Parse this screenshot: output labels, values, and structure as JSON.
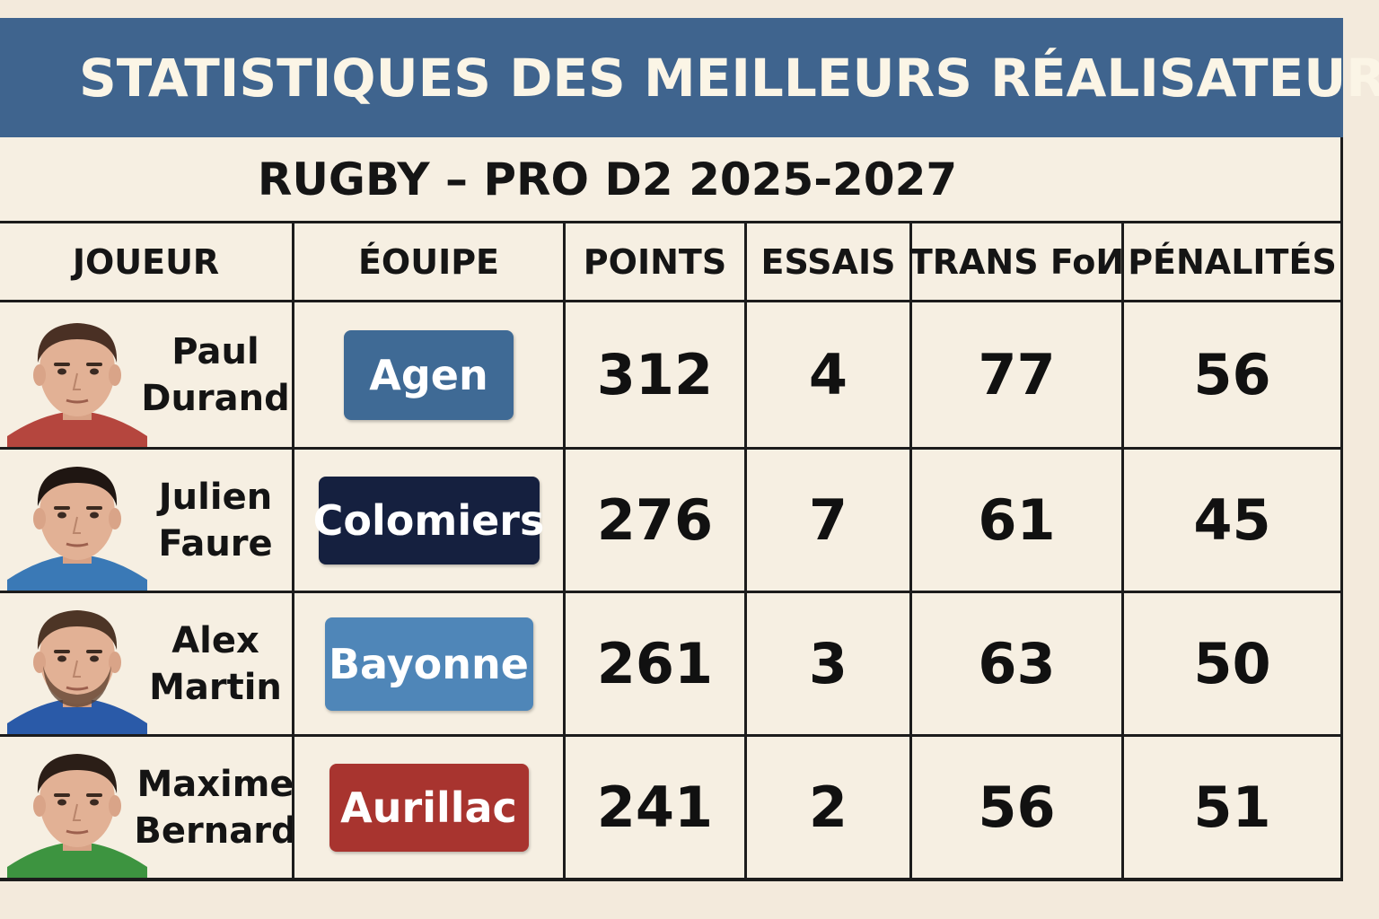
{
  "title": "STATISTIQUES DES MEILLEURS RÉALISATEURS",
  "subtitle": "RUGBY – PRO D2 2025-2027",
  "columns": [
    "JOUEUR",
    "ÉOUIPE",
    "POINTS",
    "ESSAIS",
    "TRANS FoИ",
    "PÉNALITÉS"
  ],
  "rows": [
    {
      "first_name": "Paul",
      "last_name": "Durand",
      "team": "Agen",
      "team_color": "#3f6a95",
      "jersey_color": "#b5463e",
      "points": "312",
      "essais": "4",
      "transformations": "77",
      "penalites": "56"
    },
    {
      "first_name": "Julien",
      "last_name": "Faure",
      "team": "Colomiers",
      "team_color": "#15203f",
      "jersey_color": "#3a79b6",
      "points": "276",
      "essais": "7",
      "transformations": "61",
      "penalites": "45"
    },
    {
      "first_name": "Alex",
      "last_name": "Martin",
      "team": "Bayonne",
      "team_color": "#4f86b8",
      "jersey_color": "#2a5aa8",
      "points": "261",
      "essais": "3",
      "transformations": "63",
      "penalites": "50"
    },
    {
      "first_name": "Maxime",
      "last_name": "Bernard",
      "team": "Aurillac",
      "team_color": "#a8342f",
      "jersey_color": "#3d9440",
      "points": "241",
      "essais": "2",
      "transformations": "56",
      "penalites": "51"
    }
  ],
  "colors": {
    "header_bar": "#3f648e",
    "background": "#f3eadc",
    "grid_lines": "#1c1c1c"
  }
}
